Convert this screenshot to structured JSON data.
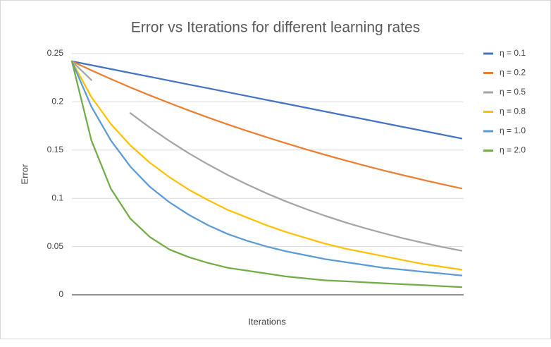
{
  "chart_data": {
    "type": "line",
    "title": "Error vs Iterations for different learning rates",
    "x_label": "Iterations",
    "y_label": "Error",
    "categories": [
      null,
      null,
      null,
      null,
      null,
      null,
      null,
      null,
      null,
      null,
      null,
      null,
      null,
      null,
      null,
      null,
      null,
      null,
      null,
      null,
      null
    ],
    "ylim": [
      0,
      0.25
    ],
    "yticks": [
      0,
      0.05,
      0.1,
      0.15,
      0.2,
      0.25
    ],
    "grid": true,
    "legend": "right",
    "series": [
      {
        "name": "η = 0.1",
        "color": "#4472c4",
        "values": [
          0.242,
          0.238,
          0.234,
          0.23,
          0.226,
          0.222,
          0.218,
          0.214,
          0.21,
          0.206,
          0.202,
          0.198,
          0.194,
          0.19,
          0.186,
          0.182,
          0.178,
          0.174,
          0.17,
          0.166,
          0.162
        ]
      },
      {
        "name": "η = 0.2",
        "color": "#ed7d31",
        "values": [
          0.242,
          0.2327,
          0.2237,
          0.215,
          0.2067,
          0.1988,
          0.1911,
          0.1837,
          0.1766,
          0.1698,
          0.1633,
          0.157,
          0.1509,
          0.1451,
          0.1395,
          0.1341,
          0.1289,
          0.124,
          0.1192,
          0.1146,
          0.1102
        ]
      },
      {
        "name": "η = 0.5",
        "color": "#a5a5a5",
        "values": [
          0.242,
          0.2226,
          null,
          0.1884,
          0.1734,
          0.1595,
          0.1467,
          0.135,
          0.1242,
          0.1143,
          0.1051,
          0.0967,
          0.089,
          0.0819,
          0.0753,
          0.0693,
          0.0638,
          0.0586,
          0.054,
          0.0496,
          0.0457
        ]
      },
      {
        "name": "η = 0.8",
        "color": "#ffc000",
        "values": [
          0.242,
          0.205,
          0.177,
          0.155,
          0.137,
          0.122,
          0.109,
          0.098,
          0.088,
          0.08,
          0.072,
          0.065,
          0.059,
          0.053,
          0.048,
          0.044,
          0.04,
          0.036,
          0.032,
          0.029,
          0.026
        ]
      },
      {
        "name": "η = 1.0",
        "color": "#5b9bd5",
        "values": [
          0.242,
          0.195,
          0.16,
          0.133,
          0.112,
          0.096,
          0.083,
          0.072,
          0.063,
          0.056,
          0.05,
          0.045,
          0.041,
          0.037,
          0.034,
          0.031,
          0.028,
          0.026,
          0.024,
          0.022,
          0.02
        ]
      },
      {
        "name": "η = 2.0",
        "color": "#70ad47",
        "values": [
          0.242,
          0.16,
          0.11,
          0.079,
          0.06,
          0.047,
          0.039,
          0.033,
          0.028,
          0.025,
          0.022,
          0.019,
          0.017,
          0.015,
          0.014,
          0.013,
          0.012,
          0.011,
          0.01,
          0.009,
          0.008
        ]
      }
    ]
  }
}
